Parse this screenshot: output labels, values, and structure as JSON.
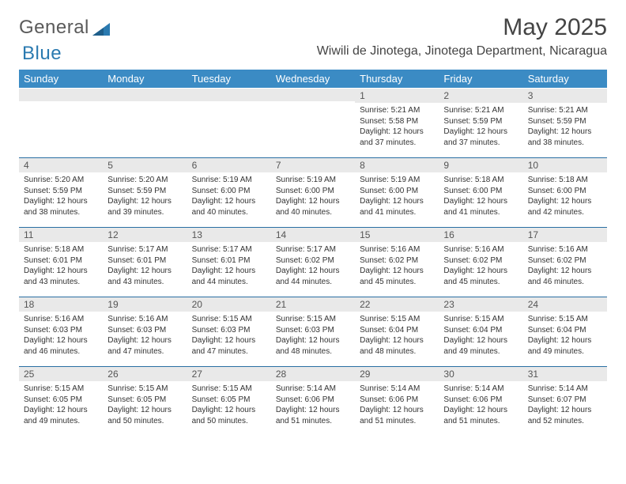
{
  "brand": {
    "part1": "General",
    "part2": "Blue"
  },
  "title": "May 2025",
  "location": "Wiwili de Jinotega, Jinotega Department, Nicaragua",
  "header_bg": "#3b8bc4",
  "daynum_bg": "#e9e9e9",
  "border_color": "#2a6fa3",
  "text_color": "#333333",
  "day_headers": [
    "Sunday",
    "Monday",
    "Tuesday",
    "Wednesday",
    "Thursday",
    "Friday",
    "Saturday"
  ],
  "weeks": [
    [
      {
        "num": "",
        "lines": []
      },
      {
        "num": "",
        "lines": []
      },
      {
        "num": "",
        "lines": []
      },
      {
        "num": "",
        "lines": []
      },
      {
        "num": "1",
        "lines": [
          "Sunrise: 5:21 AM",
          "Sunset: 5:58 PM",
          "Daylight: 12 hours",
          "and 37 minutes."
        ]
      },
      {
        "num": "2",
        "lines": [
          "Sunrise: 5:21 AM",
          "Sunset: 5:59 PM",
          "Daylight: 12 hours",
          "and 37 minutes."
        ]
      },
      {
        "num": "3",
        "lines": [
          "Sunrise: 5:21 AM",
          "Sunset: 5:59 PM",
          "Daylight: 12 hours",
          "and 38 minutes."
        ]
      }
    ],
    [
      {
        "num": "4",
        "lines": [
          "Sunrise: 5:20 AM",
          "Sunset: 5:59 PM",
          "Daylight: 12 hours",
          "and 38 minutes."
        ]
      },
      {
        "num": "5",
        "lines": [
          "Sunrise: 5:20 AM",
          "Sunset: 5:59 PM",
          "Daylight: 12 hours",
          "and 39 minutes."
        ]
      },
      {
        "num": "6",
        "lines": [
          "Sunrise: 5:19 AM",
          "Sunset: 6:00 PM",
          "Daylight: 12 hours",
          "and 40 minutes."
        ]
      },
      {
        "num": "7",
        "lines": [
          "Sunrise: 5:19 AM",
          "Sunset: 6:00 PM",
          "Daylight: 12 hours",
          "and 40 minutes."
        ]
      },
      {
        "num": "8",
        "lines": [
          "Sunrise: 5:19 AM",
          "Sunset: 6:00 PM",
          "Daylight: 12 hours",
          "and 41 minutes."
        ]
      },
      {
        "num": "9",
        "lines": [
          "Sunrise: 5:18 AM",
          "Sunset: 6:00 PM",
          "Daylight: 12 hours",
          "and 41 minutes."
        ]
      },
      {
        "num": "10",
        "lines": [
          "Sunrise: 5:18 AM",
          "Sunset: 6:00 PM",
          "Daylight: 12 hours",
          "and 42 minutes."
        ]
      }
    ],
    [
      {
        "num": "11",
        "lines": [
          "Sunrise: 5:18 AM",
          "Sunset: 6:01 PM",
          "Daylight: 12 hours",
          "and 43 minutes."
        ]
      },
      {
        "num": "12",
        "lines": [
          "Sunrise: 5:17 AM",
          "Sunset: 6:01 PM",
          "Daylight: 12 hours",
          "and 43 minutes."
        ]
      },
      {
        "num": "13",
        "lines": [
          "Sunrise: 5:17 AM",
          "Sunset: 6:01 PM",
          "Daylight: 12 hours",
          "and 44 minutes."
        ]
      },
      {
        "num": "14",
        "lines": [
          "Sunrise: 5:17 AM",
          "Sunset: 6:02 PM",
          "Daylight: 12 hours",
          "and 44 minutes."
        ]
      },
      {
        "num": "15",
        "lines": [
          "Sunrise: 5:16 AM",
          "Sunset: 6:02 PM",
          "Daylight: 12 hours",
          "and 45 minutes."
        ]
      },
      {
        "num": "16",
        "lines": [
          "Sunrise: 5:16 AM",
          "Sunset: 6:02 PM",
          "Daylight: 12 hours",
          "and 45 minutes."
        ]
      },
      {
        "num": "17",
        "lines": [
          "Sunrise: 5:16 AM",
          "Sunset: 6:02 PM",
          "Daylight: 12 hours",
          "and 46 minutes."
        ]
      }
    ],
    [
      {
        "num": "18",
        "lines": [
          "Sunrise: 5:16 AM",
          "Sunset: 6:03 PM",
          "Daylight: 12 hours",
          "and 46 minutes."
        ]
      },
      {
        "num": "19",
        "lines": [
          "Sunrise: 5:16 AM",
          "Sunset: 6:03 PM",
          "Daylight: 12 hours",
          "and 47 minutes."
        ]
      },
      {
        "num": "20",
        "lines": [
          "Sunrise: 5:15 AM",
          "Sunset: 6:03 PM",
          "Daylight: 12 hours",
          "and 47 minutes."
        ]
      },
      {
        "num": "21",
        "lines": [
          "Sunrise: 5:15 AM",
          "Sunset: 6:03 PM",
          "Daylight: 12 hours",
          "and 48 minutes."
        ]
      },
      {
        "num": "22",
        "lines": [
          "Sunrise: 5:15 AM",
          "Sunset: 6:04 PM",
          "Daylight: 12 hours",
          "and 48 minutes."
        ]
      },
      {
        "num": "23",
        "lines": [
          "Sunrise: 5:15 AM",
          "Sunset: 6:04 PM",
          "Daylight: 12 hours",
          "and 49 minutes."
        ]
      },
      {
        "num": "24",
        "lines": [
          "Sunrise: 5:15 AM",
          "Sunset: 6:04 PM",
          "Daylight: 12 hours",
          "and 49 minutes."
        ]
      }
    ],
    [
      {
        "num": "25",
        "lines": [
          "Sunrise: 5:15 AM",
          "Sunset: 6:05 PM",
          "Daylight: 12 hours",
          "and 49 minutes."
        ]
      },
      {
        "num": "26",
        "lines": [
          "Sunrise: 5:15 AM",
          "Sunset: 6:05 PM",
          "Daylight: 12 hours",
          "and 50 minutes."
        ]
      },
      {
        "num": "27",
        "lines": [
          "Sunrise: 5:15 AM",
          "Sunset: 6:05 PM",
          "Daylight: 12 hours",
          "and 50 minutes."
        ]
      },
      {
        "num": "28",
        "lines": [
          "Sunrise: 5:14 AM",
          "Sunset: 6:06 PM",
          "Daylight: 12 hours",
          "and 51 minutes."
        ]
      },
      {
        "num": "29",
        "lines": [
          "Sunrise: 5:14 AM",
          "Sunset: 6:06 PM",
          "Daylight: 12 hours",
          "and 51 minutes."
        ]
      },
      {
        "num": "30",
        "lines": [
          "Sunrise: 5:14 AM",
          "Sunset: 6:06 PM",
          "Daylight: 12 hours",
          "and 51 minutes."
        ]
      },
      {
        "num": "31",
        "lines": [
          "Sunrise: 5:14 AM",
          "Sunset: 6:07 PM",
          "Daylight: 12 hours",
          "and 52 minutes."
        ]
      }
    ]
  ]
}
